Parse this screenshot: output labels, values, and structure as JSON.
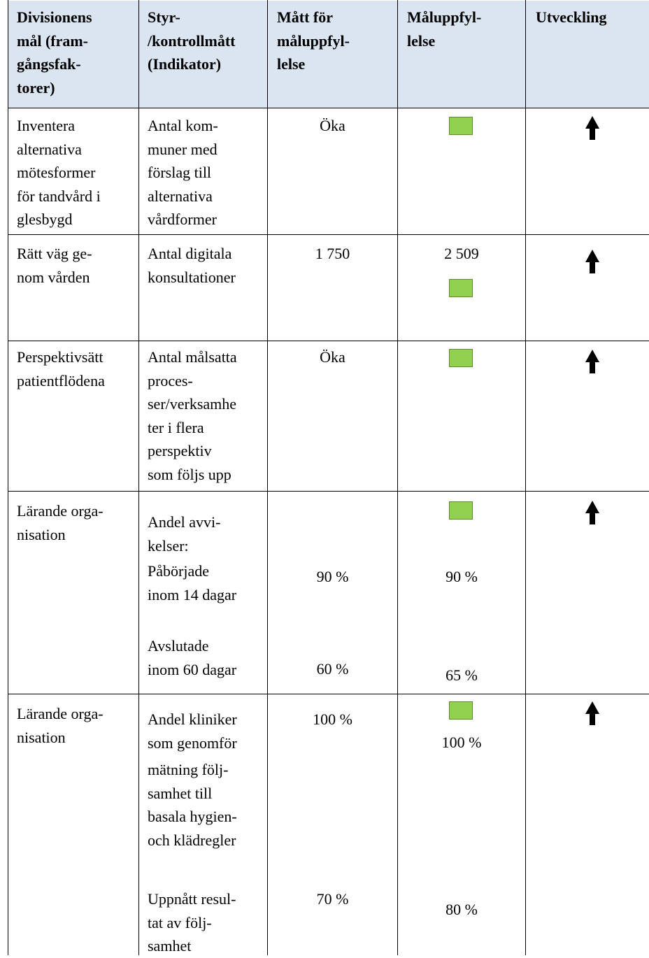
{
  "header": {
    "col1": "Divisionens\nmål (fram-\ngångsfak-\ntorer)",
    "col2": "Styr-\n/kontrollmått\n(Indikator)",
    "col3": "Mått för\nmåluppfyl-\nlelse",
    "col4": "Måluppfyl-\nlelse",
    "col5": "Utveckling"
  },
  "rows": [
    {
      "goal": "Inventera\nalternativa\nmötesformer\nför tandvård i\nglesbygd",
      "indicator": "Antal kom-\nmuner med\nförslag till\nalternativa\nvårdformer",
      "target": "Öka",
      "status_color": "green",
      "trend": "up-arrow-icon"
    },
    {
      "goal": "Rätt väg ge-\nnom vården",
      "indicator": "Antal digitala\nkonsultationer",
      "target": "1 750",
      "result": "2 509",
      "status_color": "green",
      "trend": "up-arrow-icon"
    },
    {
      "goal": "Perspektivsätt\npatientflödena",
      "indicator": "Antal målsatta\nproces-\nser/verksamhe\nter i flera\nperspektiv\nsom följs upp",
      "target": "Öka",
      "status_color": "green",
      "trend": "up-arrow-icon"
    },
    {
      "goal": "Lärande orga-\nnisation",
      "indicator_intro": "Andel avvi-\nkelser:",
      "sub": [
        {
          "label": "Påbörjade\ninom 14 dagar",
          "target": "90 %",
          "result": "90 %"
        },
        {
          "label": "Avslutade\ninom 60 dagar",
          "target": "60 %",
          "result": "65 %"
        }
      ],
      "status_color": "green",
      "trend": "up-arrow-icon"
    },
    {
      "goal": "Lärande orga-\nnisation",
      "sub": [
        {
          "label": "Andel kliniker\nsom genomför",
          "target": "100 %",
          "result": "100 %"
        },
        {
          "label": "mätning följ-\nsamhet till\nbasala hygien-\noch klädregler"
        },
        {
          "label": "Uppnått resul-\ntat av följ-\nsamhet",
          "target": "70 %",
          "result": "80 %"
        }
      ],
      "status_color": "green",
      "trend": "up-arrow-icon"
    }
  ],
  "colors": {
    "header_bg": "#dbe5f1",
    "status_green": "#92d050",
    "border": "#000000"
  }
}
